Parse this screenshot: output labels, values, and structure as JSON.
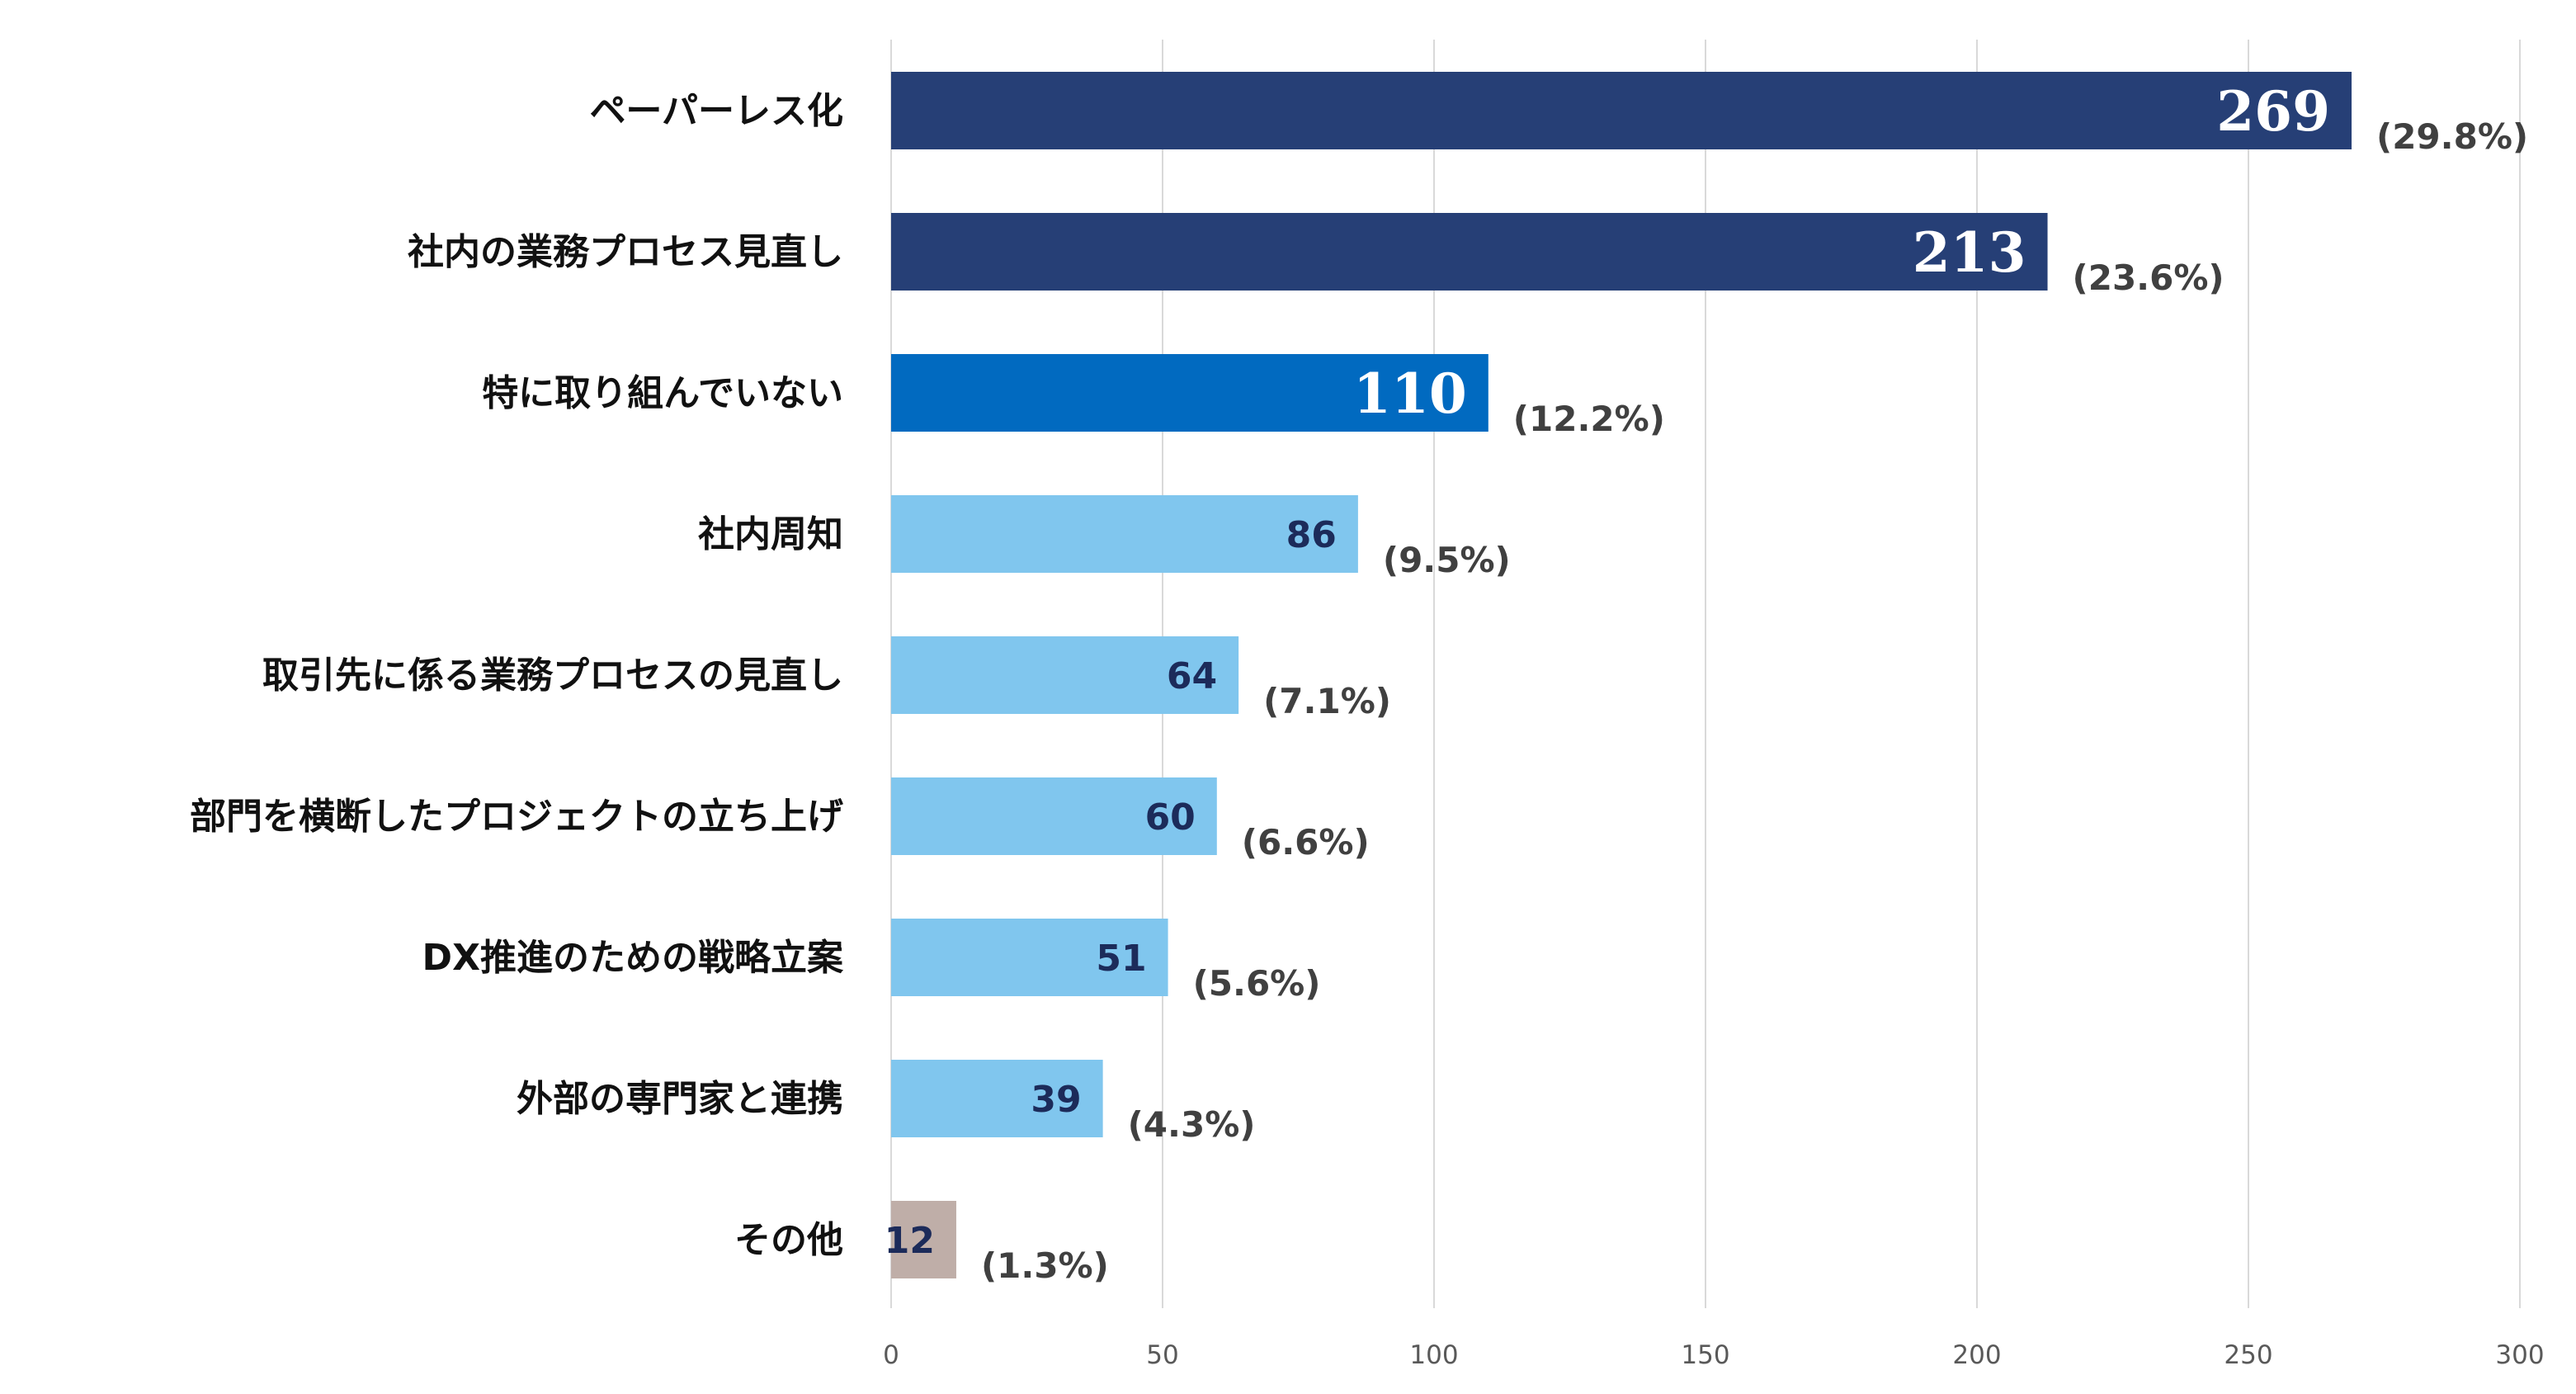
{
  "chart_data": {
    "type": "bar",
    "orientation": "horizontal",
    "categories": [
      "ペーパーレス化",
      "社内の業務プロセス見直し",
      "特に取り組んでいない",
      "社内周知",
      "取引先に係る業務プロセスの見直し",
      "部門を横断したプロジェクトの立ち上げ",
      "DX推進のための戦略立案",
      "外部の専門家と連携",
      "その他"
    ],
    "values": [
      269,
      213,
      110,
      86,
      64,
      60,
      51,
      39,
      12
    ],
    "value_labels": [
      "269",
      "213",
      "110",
      "86",
      "64",
      "60",
      "51",
      "39",
      "12"
    ],
    "percent_labels": [
      "(29.8%)",
      "(23.6%)",
      "(12.2%)",
      "(9.5%)",
      "(7.1%)",
      "(6.6%)",
      "(5.6%)",
      "(4.3%)",
      "(1.3%)"
    ],
    "bar_colors": [
      "#263f76",
      "#263f76",
      "#016ac0",
      "#80c6ee",
      "#80c6ee",
      "#80c6ee",
      "#80c6ee",
      "#80c6ee",
      "#bfaea8"
    ],
    "value_label_colors": [
      "#ffffff",
      "#ffffff",
      "#ffffff",
      "#1c2b5a",
      "#1c2b5a",
      "#1c2b5a",
      "#1c2b5a",
      "#1c2b5a",
      "#1c2b5a"
    ],
    "xlim": [
      0,
      300
    ],
    "x_ticks": [
      "0",
      "50",
      "100",
      "150",
      "200",
      "250",
      "300"
    ],
    "grid": "vertical",
    "legend": "none",
    "title": "",
    "xlabel": "",
    "ylabel": ""
  }
}
